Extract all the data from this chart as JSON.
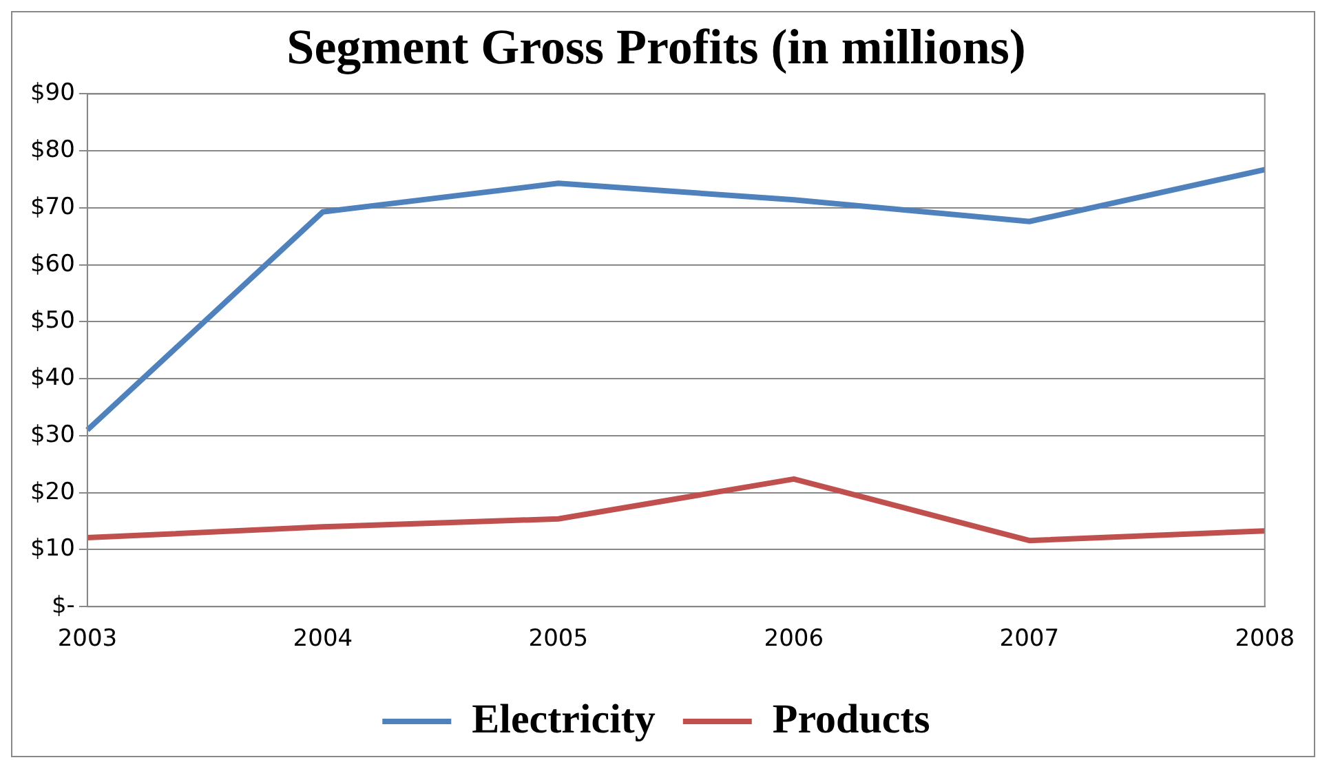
{
  "chart_data": {
    "type": "line",
    "title": "Segment Gross Profits (in millions)",
    "categories": [
      "2003",
      "2004",
      "2005",
      "2006",
      "2007",
      "2008"
    ],
    "series": [
      {
        "name": "Electricity",
        "color": "#4f81bd",
        "values": [
          31,
          69.3,
          74.3,
          71.4,
          67.6,
          76.7
        ]
      },
      {
        "name": "Products",
        "color": "#c0504d",
        "values": [
          12.1,
          14,
          15.4,
          22.4,
          11.6,
          13.3
        ]
      }
    ],
    "ylim": [
      0,
      90
    ],
    "yticks": [
      {
        "value": 0,
        "label": "$-"
      },
      {
        "value": 10,
        "label": "$10"
      },
      {
        "value": 20,
        "label": "$20"
      },
      {
        "value": 30,
        "label": "$30"
      },
      {
        "value": 40,
        "label": "$40"
      },
      {
        "value": 50,
        "label": "$50"
      },
      {
        "value": 60,
        "label": "$60"
      },
      {
        "value": 70,
        "label": "$70"
      },
      {
        "value": 80,
        "label": "$80"
      },
      {
        "value": 90,
        "label": "$90"
      }
    ],
    "grid": "y",
    "legend": "bottom",
    "marker": "none",
    "line_style": "solid"
  }
}
